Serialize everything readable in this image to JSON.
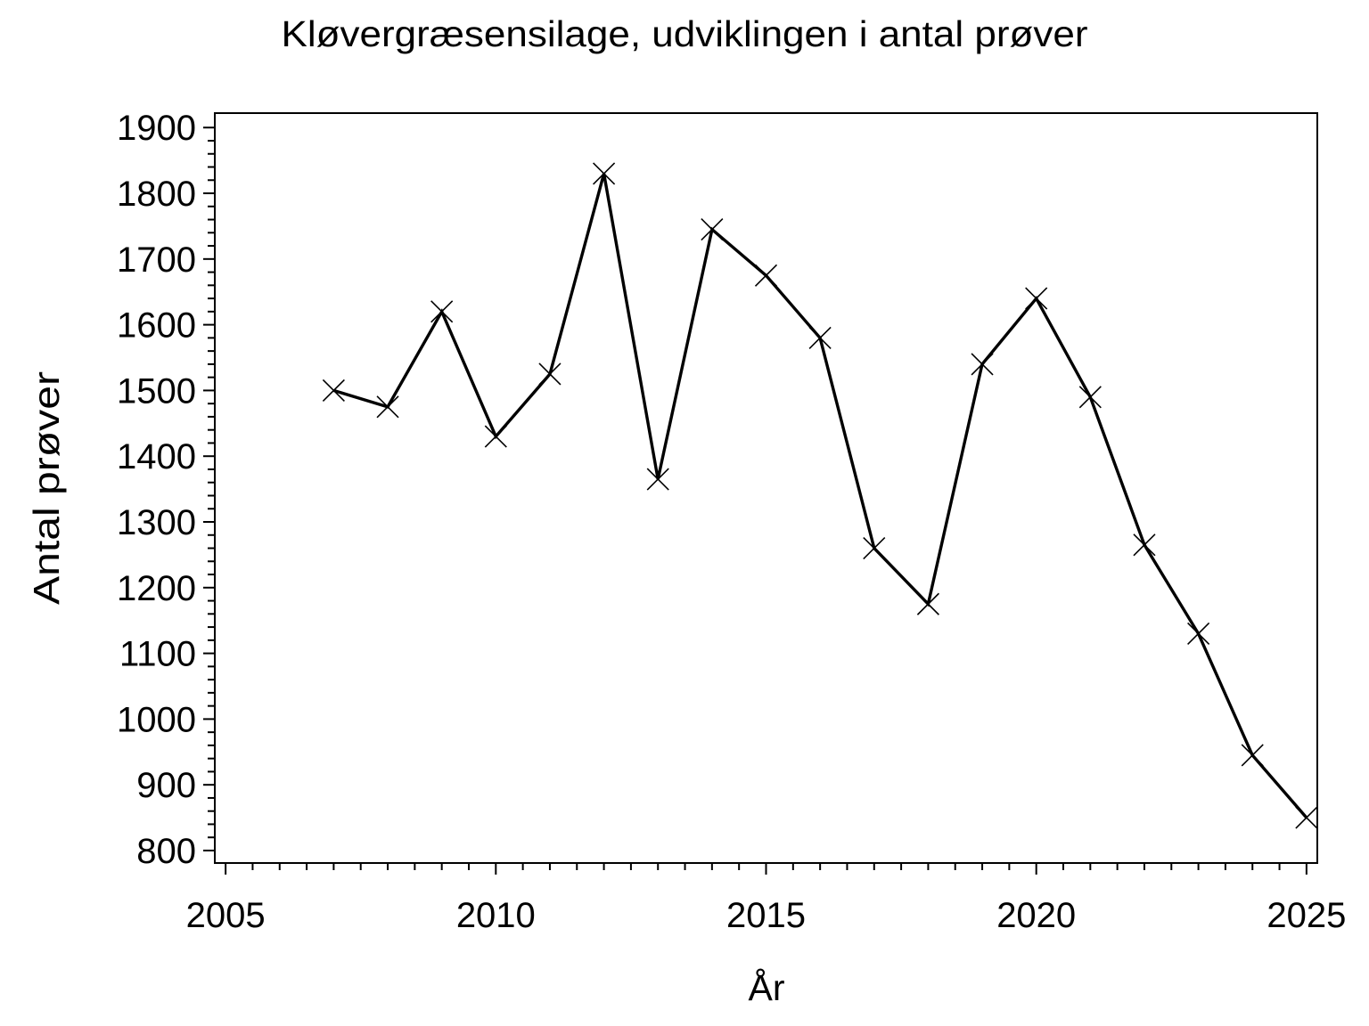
{
  "page": {
    "background": "#FFFFFF",
    "foreground": "#000000"
  },
  "chart_data": {
    "type": "line",
    "title": "Kløvergræsensilage, udviklingen i antal prøver",
    "xlabel": "År",
    "ylabel": "Antal prøver",
    "x": [
      2007,
      2008,
      2009,
      2010,
      2011,
      2012,
      2013,
      2014,
      2015,
      2016,
      2017,
      2018,
      2019,
      2020,
      2021,
      2022,
      2023,
      2024,
      2025
    ],
    "values": [
      1500,
      1475,
      1620,
      1430,
      1525,
      1830,
      1365,
      1745,
      1675,
      1580,
      1260,
      1175,
      1540,
      1640,
      1490,
      1265,
      1130,
      945,
      850
    ],
    "marker": "x",
    "line_color": "#000000",
    "marker_color": "#000000",
    "plot_background": "#FFFFFF",
    "grid": false,
    "legend": null,
    "frame": "box",
    "x_axis": {
      "range": [
        2004.8,
        2025.2
      ],
      "major_ticks": [
        2005,
        2010,
        2015,
        2020,
        2025
      ],
      "minor_tick_step": 0.5,
      "tick_direction": "out"
    },
    "y_axis": {
      "range": [
        781,
        1922
      ],
      "major_ticks": [
        800,
        900,
        1000,
        1100,
        1200,
        1300,
        1400,
        1500,
        1600,
        1700,
        1800,
        1900
      ],
      "minor_tick_step": 20,
      "tick_direction": "out"
    }
  }
}
